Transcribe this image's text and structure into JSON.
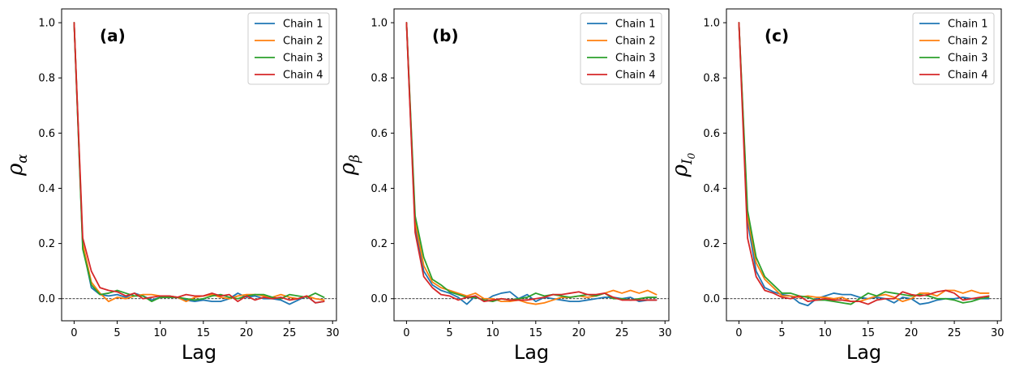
{
  "chart_data": [
    {
      "type": "line",
      "panel_label": "(a)",
      "xlabel": "Lag",
      "ylabel": "ρ",
      "ylabel_sub": "α",
      "ylabel_subsub": "",
      "xlim": [
        -1.45,
        30.45
      ],
      "ylim": [
        -0.08,
        1.05
      ],
      "xticks": [
        0,
        5,
        10,
        15,
        20,
        25,
        30
      ],
      "yticks": [
        0.0,
        0.2,
        0.4,
        0.6,
        0.8,
        1.0
      ],
      "reference_line": 0.0,
      "legend_position": "top-right",
      "x": [
        0,
        1,
        2,
        3,
        4,
        5,
        6,
        7,
        8,
        9,
        10,
        11,
        12,
        13,
        14,
        15,
        16,
        17,
        18,
        19,
        20,
        21,
        22,
        23,
        24,
        25,
        26,
        27,
        28,
        29
      ],
      "series": [
        {
          "name": "Chain 1",
          "color": "#1f77b4",
          "values": [
            1.0,
            0.19,
            0.04,
            0.015,
            0.01,
            0.015,
            0.005,
            0.02,
            0.01,
            -0.005,
            0.005,
            0.01,
            0.005,
            -0.005,
            -0.01,
            -0.005,
            -0.01,
            -0.01,
            0.0,
            0.02,
            0.005,
            0.01,
            0.0,
            0.0,
            -0.005,
            -0.02,
            -0.005,
            0.01,
            -0.015,
            -0.01
          ]
        },
        {
          "name": "Chain 2",
          "color": "#ff7f0e",
          "values": [
            1.0,
            0.2,
            0.06,
            0.02,
            -0.01,
            0.005,
            0.0,
            0.01,
            0.015,
            0.015,
            0.01,
            0.01,
            0.005,
            -0.01,
            0.005,
            0.01,
            0.015,
            0.005,
            0.0,
            0.01,
            0.015,
            0.015,
            0.01,
            0.005,
            0.015,
            0.005,
            0.0,
            0.01,
            0.0,
            -0.005
          ]
        },
        {
          "name": "Chain 3",
          "color": "#2ca02c",
          "values": [
            1.0,
            0.18,
            0.05,
            0.015,
            0.02,
            0.03,
            0.02,
            0.01,
            0.01,
            -0.01,
            0.005,
            0.005,
            0.005,
            0.0,
            -0.005,
            0.0,
            0.01,
            0.015,
            0.005,
            0.0,
            0.01,
            0.015,
            0.015,
            0.005,
            0.0,
            0.015,
            0.01,
            0.005,
            0.02,
            0.005
          ]
        },
        {
          "name": "Chain 4",
          "color": "#d62728",
          "values": [
            1.0,
            0.22,
            0.1,
            0.04,
            0.03,
            0.025,
            0.01,
            0.02,
            0.0,
            0.005,
            0.01,
            0.01,
            0.005,
            0.015,
            0.01,
            0.01,
            0.02,
            0.01,
            0.015,
            -0.01,
            0.01,
            -0.005,
            0.005,
            0.0,
            0.005,
            -0.005,
            0.0,
            0.01,
            -0.015,
            -0.01
          ]
        }
      ]
    },
    {
      "type": "line",
      "panel_label": "(b)",
      "xlabel": "Lag",
      "ylabel": "ρ",
      "ylabel_sub": "β",
      "ylabel_subsub": "",
      "xlim": [
        -1.45,
        30.45
      ],
      "ylim": [
        -0.08,
        1.05
      ],
      "xticks": [
        0,
        5,
        10,
        15,
        20,
        25,
        30
      ],
      "yticks": [
        0.0,
        0.2,
        0.4,
        0.6,
        0.8,
        1.0
      ],
      "reference_line": 0.0,
      "legend_position": "top-right",
      "x": [
        0,
        1,
        2,
        3,
        4,
        5,
        6,
        7,
        8,
        9,
        10,
        11,
        12,
        13,
        14,
        15,
        16,
        17,
        18,
        19,
        20,
        21,
        22,
        23,
        24,
        25,
        26,
        27,
        28,
        29
      ],
      "series": [
        {
          "name": "Chain 1",
          "color": "#1f77b4",
          "values": [
            1.0,
            0.26,
            0.1,
            0.05,
            0.03,
            0.02,
            0.005,
            -0.02,
            0.01,
            -0.01,
            0.01,
            0.02,
            0.025,
            0.0,
            0.015,
            -0.01,
            0.005,
            0.0,
            -0.005,
            -0.01,
            -0.01,
            -0.005,
            0.0,
            0.005,
            0.005,
            0.0,
            0.005,
            -0.01,
            -0.005,
            -0.005
          ]
        },
        {
          "name": "Chain 2",
          "color": "#ff7f0e",
          "values": [
            1.0,
            0.28,
            0.12,
            0.06,
            0.04,
            0.03,
            0.02,
            0.01,
            0.02,
            0.0,
            0.0,
            -0.01,
            -0.01,
            -0.005,
            -0.015,
            -0.02,
            -0.015,
            -0.005,
            0.005,
            0.005,
            0.01,
            0.005,
            0.01,
            0.02,
            0.03,
            0.02,
            0.03,
            0.02,
            0.03,
            0.015
          ]
        },
        {
          "name": "Chain 3",
          "color": "#2ca02c",
          "values": [
            1.0,
            0.3,
            0.15,
            0.07,
            0.05,
            0.025,
            0.015,
            0.005,
            0.005,
            -0.005,
            -0.01,
            0.0,
            -0.005,
            0.0,
            0.005,
            0.02,
            0.01,
            0.015,
            0.01,
            0.005,
            0.01,
            0.015,
            0.01,
            0.02,
            0.0,
            0.0,
            -0.005,
            0.0,
            0.005,
            0.005
          ]
        },
        {
          "name": "Chain 4",
          "color": "#d62728",
          "values": [
            1.0,
            0.24,
            0.08,
            0.04,
            0.015,
            0.01,
            -0.005,
            0.005,
            0.01,
            -0.01,
            -0.005,
            0.0,
            -0.005,
            -0.005,
            -0.005,
            0.0,
            0.005,
            0.015,
            0.015,
            0.02,
            0.025,
            0.015,
            0.015,
            0.02,
            0.005,
            -0.005,
            -0.005,
            -0.005,
            -0.005,
            -0.005
          ]
        }
      ]
    },
    {
      "type": "line",
      "panel_label": "(c)",
      "xlabel": "Lag",
      "ylabel": "ρ",
      "ylabel_sub": "I",
      "ylabel_subsub": "0",
      "xlim": [
        -1.45,
        30.45
      ],
      "ylim": [
        -0.08,
        1.05
      ],
      "xticks": [
        0,
        5,
        10,
        15,
        20,
        25,
        30
      ],
      "yticks": [
        0.0,
        0.2,
        0.4,
        0.6,
        0.8,
        1.0
      ],
      "reference_line": 0.0,
      "legend_position": "top-right",
      "x": [
        0,
        1,
        2,
        3,
        4,
        5,
        6,
        7,
        8,
        9,
        10,
        11,
        12,
        13,
        14,
        15,
        16,
        17,
        18,
        19,
        20,
        21,
        22,
        23,
        24,
        25,
        26,
        27,
        28,
        29
      ],
      "series": [
        {
          "name": "Chain 1",
          "color": "#1f77b4",
          "values": [
            1.0,
            0.28,
            0.1,
            0.04,
            0.025,
            0.015,
            0.01,
            -0.015,
            -0.025,
            0.0,
            0.01,
            0.02,
            0.015,
            0.015,
            0.005,
            0.0,
            0.005,
            0.0,
            -0.015,
            0.005,
            0.0,
            -0.02,
            -0.015,
            -0.005,
            0.0,
            0.0,
            0.005,
            0.0,
            0.0,
            0.0
          ]
        },
        {
          "name": "Chain 2",
          "color": "#ff7f0e",
          "values": [
            1.0,
            0.3,
            0.13,
            0.07,
            0.04,
            0.01,
            0.01,
            0.005,
            0.01,
            0.005,
            0.005,
            0.0,
            0.005,
            -0.01,
            -0.01,
            0.0,
            0.01,
            0.015,
            0.005,
            -0.01,
            0.0,
            0.02,
            0.02,
            0.01,
            0.03,
            0.03,
            0.02,
            0.03,
            0.02,
            0.02
          ]
        },
        {
          "name": "Chain 3",
          "color": "#2ca02c",
          "values": [
            1.0,
            0.32,
            0.15,
            0.08,
            0.05,
            0.02,
            0.02,
            0.01,
            0.005,
            -0.005,
            -0.005,
            -0.01,
            -0.015,
            -0.02,
            0.0,
            0.02,
            0.01,
            0.025,
            0.02,
            0.015,
            0.01,
            0.015,
            0.01,
            0.0,
            0.0,
            -0.005,
            -0.015,
            -0.01,
            0.0,
            0.005
          ]
        },
        {
          "name": "Chain 4",
          "color": "#d62728",
          "values": [
            1.0,
            0.22,
            0.08,
            0.03,
            0.02,
            0.005,
            0.0,
            0.01,
            -0.01,
            -0.005,
            0.0,
            -0.005,
            -0.005,
            -0.01,
            -0.01,
            -0.02,
            -0.005,
            0.0,
            0.0,
            0.025,
            0.015,
            0.01,
            0.015,
            0.025,
            0.03,
            0.02,
            -0.005,
            0.0,
            0.005,
            0.01
          ]
        }
      ]
    }
  ]
}
